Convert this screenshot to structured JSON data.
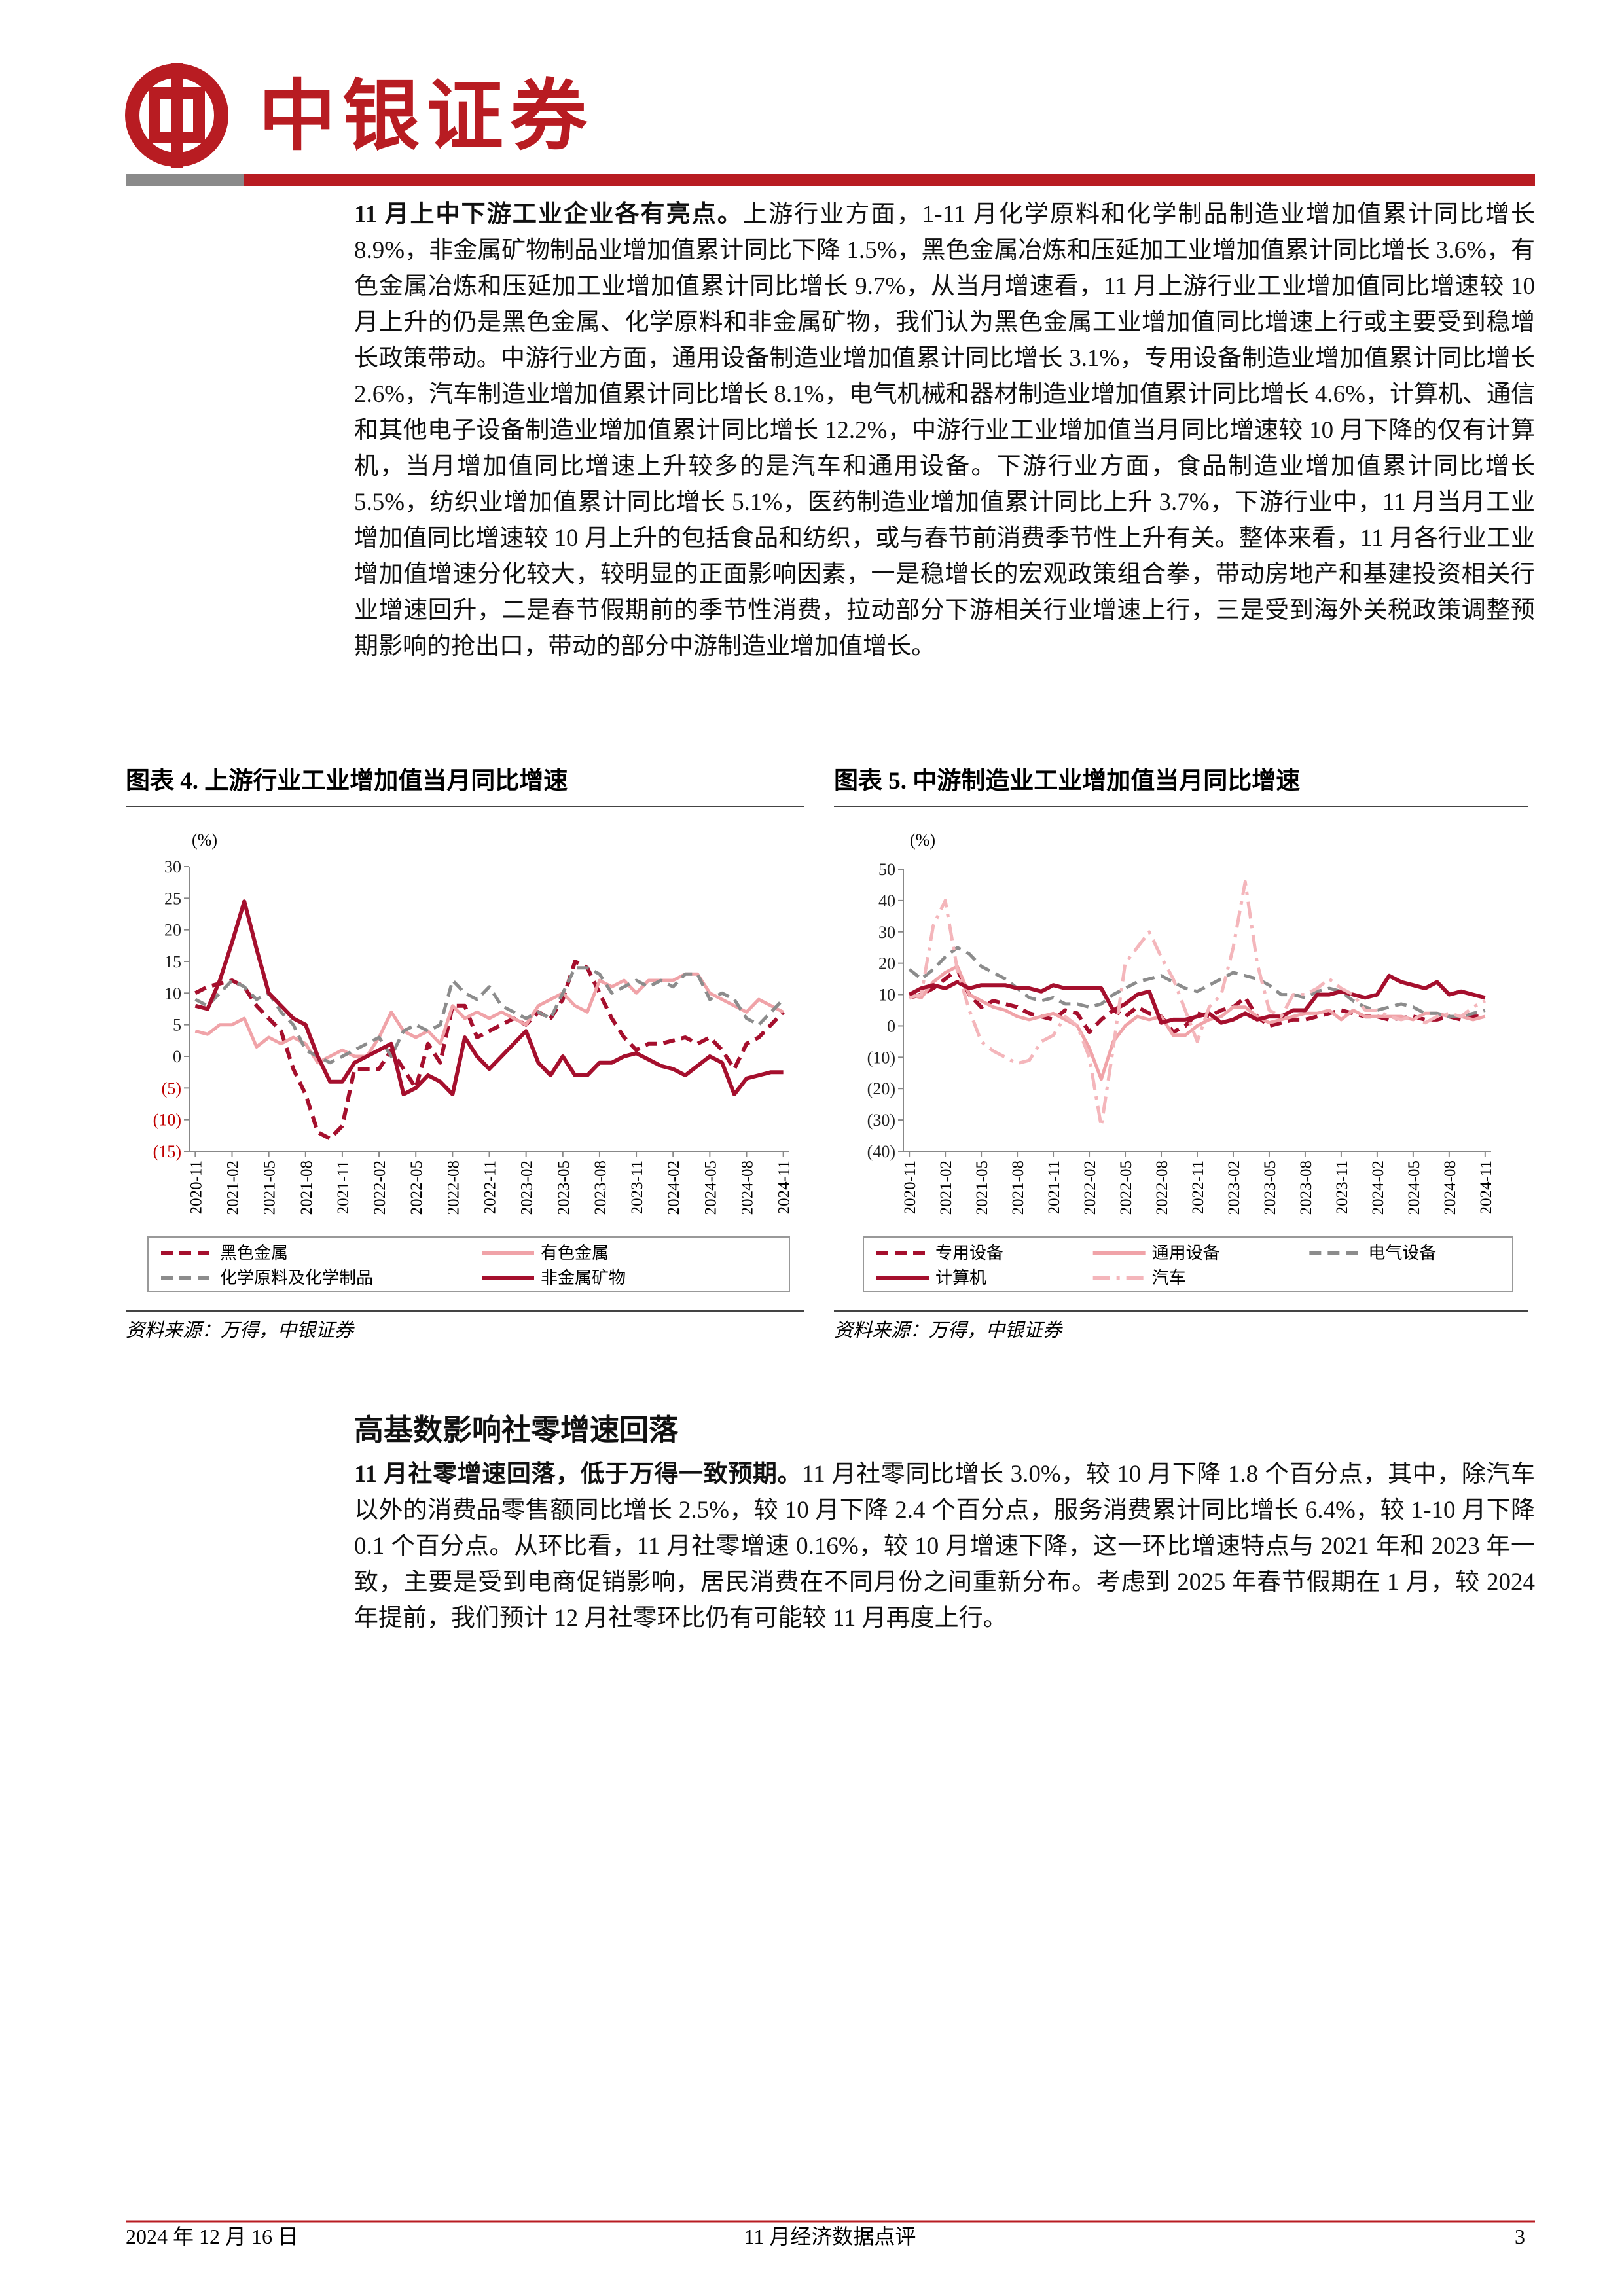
{
  "header": {
    "logo_text": "中银证券"
  },
  "body": {
    "paragraph_1": {
      "lead": "11 月上中下游工业企业各有亮点。",
      "text": "上游行业方面，1-11 月化学原料和化学制品制造业增加值累计同比增长 8.9%，非金属矿物制品业增加值累计同比下降 1.5%，黑色金属冶炼和压延加工业增加值累计同比增长 3.6%，有色金属冶炼和压延加工业增加值累计同比增长 9.7%，从当月增速看，11 月上游行业工业增加值同比增速较 10 月上升的仍是黑色金属、化学原料和非金属矿物，我们认为黑色金属工业增加值同比增速上行或主要受到稳增长政策带动。中游行业方面，通用设备制造业增加值累计同比增长 3.1%，专用设备制造业增加值累计同比增长 2.6%，汽车制造业增加值累计同比增长 8.1%，电气机械和器材制造业增加值累计同比增长 4.6%，计算机、通信和其他电子设备制造业增加值累计同比增长 12.2%，中游行业工业增加值当月同比增速较 10 月下降的仅有计算机，当月增加值同比增速上升较多的是汽车和通用设备。下游行业方面，食品制造业增加值累计同比增长 5.5%，纺织业增加值累计同比增长 5.1%，医药制造业增加值累计同比上升 3.7%，下游行业中，11 月当月工业增加值同比增速较 10 月上升的包括食品和纺织，或与春节前消费季节性上升有关。整体来看，11 月各行业工业增加值增速分化较大，较明显的正面影响因素，一是稳增长的宏观政策组合拳，带动房地产和基建投资相关行业增速回升，二是春节假期前的季节性消费，拉动部分下游相关行业增速上行，三是受到海外关税政策调整预期影响的抢出口，带动的部分中游制造业增加值增长。"
    },
    "heading": "高基数影响社零增速回落",
    "paragraph_2": {
      "lead": "11 月社零增速回落，低于万得一致预期。",
      "text": "11 月社零同比增长 3.0%，较 10 月下降 1.8 个百分点，其中，除汽车以外的消费品零售额同比增长 2.5%，较 10 月下降 2.4 个百分点，服务消费累计同比增长 6.4%，较 1-10 月下降 0.1 个百分点。从环比看，11 月社零增速 0.16%，较 10 月增速下降，这一环比增速特点与 2021 年和 2023 年一致，主要是受到电商促销影响，居民消费在不同月份之间重新分布。考虑到 2025 年春节假期在 1 月，较 2024 年提前，我们预计 12 月社零环比仍有可能较 11 月再度上行。"
    }
  },
  "chart_data": [
    {
      "type": "line",
      "title": "图表 4. 上游行业工业增加值当月同比增速",
      "unit": "(%)",
      "source": "资料来源：万得，中银证券",
      "categories": [
        "2020-11",
        null,
        null,
        "2021-02",
        null,
        null,
        "2021-05",
        null,
        null,
        "2021-08",
        null,
        null,
        "2021-11",
        null,
        null,
        "2022-02",
        null,
        null,
        "2022-05",
        null,
        null,
        "2022-08",
        null,
        null,
        "2022-11",
        null,
        null,
        "2023-02",
        null,
        null,
        "2023-05",
        null,
        null,
        "2023-08",
        null,
        null,
        "2023-11",
        null,
        null,
        "2024-02",
        null,
        null,
        "2024-05",
        null,
        null,
        "2024-08",
        null,
        null,
        "2024-11"
      ],
      "ylim": [
        -15,
        30
      ],
      "yticks": [
        30,
        25,
        20,
        15,
        10,
        5,
        0,
        {
          "value": -5,
          "label": "(5)"
        },
        {
          "value": -10,
          "label": "(10)"
        },
        {
          "value": -15,
          "label": "(15)"
        }
      ],
      "grid": false,
      "legend": "bottom",
      "series": [
        {
          "name": "黑色金属",
          "color": "#a50f2d",
          "dash": "dashed",
          "values": [
            10,
            11,
            11.5,
            12,
            11,
            8,
            6,
            4,
            -2,
            -6,
            -12,
            -13,
            -11,
            -2,
            -2,
            -2,
            1,
            -2,
            -5,
            2,
            -1,
            8,
            8,
            3,
            4,
            5,
            6,
            5,
            7,
            6,
            9,
            15,
            14,
            10,
            6,
            3,
            1,
            2,
            2,
            2.5,
            3,
            2,
            3,
            1,
            -2,
            2,
            3,
            5,
            7
          ]
        },
        {
          "name": "有色金属",
          "color": "#f0a3a8",
          "dash": "solid",
          "values": [
            4,
            3.5,
            5,
            5,
            6,
            1.5,
            3,
            2,
            3,
            2,
            -1,
            0,
            1,
            0,
            0,
            3,
            7,
            4,
            3,
            4,
            2,
            8,
            6,
            7,
            6,
            7,
            6,
            5,
            8,
            9,
            10,
            8,
            7,
            12,
            11,
            12,
            10,
            12,
            12,
            12,
            13,
            13,
            10,
            9,
            8,
            7,
            9,
            8,
            7
          ]
        },
        {
          "name": "化学原料及化学制品",
          "color": "#8c8c8c",
          "dash": "dashed",
          "values": [
            9,
            8,
            10,
            12,
            11,
            9,
            10,
            7,
            5,
            1,
            0,
            -1,
            0,
            1,
            2,
            3,
            0,
            4,
            5,
            4,
            5,
            12,
            10,
            9,
            11,
            8,
            7,
            6,
            7,
            6,
            10,
            14,
            14,
            13,
            10,
            11,
            12,
            11,
            12,
            11,
            13,
            13,
            9,
            10,
            9,
            6,
            5,
            7,
            9
          ]
        },
        {
          "name": "非金属矿物",
          "color": "#a50f2d",
          "dash": "solid",
          "values": [
            8,
            7.5,
            12,
            18,
            24.5,
            17,
            10,
            8,
            6,
            5,
            0,
            -4,
            -4,
            -1,
            0,
            1,
            2,
            -6,
            -5,
            -3,
            -4,
            -6,
            3,
            0,
            -2,
            0,
            2,
            4,
            -1,
            -3,
            0,
            -3,
            -3,
            -1,
            -1,
            0,
            0.5,
            -0.5,
            -1.5,
            -2,
            -3,
            -1.5,
            0,
            -1,
            -6,
            -3.5,
            -3,
            -2.5,
            -2.5
          ]
        }
      ]
    },
    {
      "type": "line",
      "title": "图表 5. 中游制造业工业增加值当月同比增速",
      "unit": "(%)",
      "source": "资料来源：万得，中银证券",
      "categories": [
        "2020-11",
        null,
        null,
        "2021-02",
        null,
        null,
        "2021-05",
        null,
        null,
        "2021-08",
        null,
        null,
        "2021-11",
        null,
        null,
        "2022-02",
        null,
        null,
        "2022-05",
        null,
        null,
        "2022-08",
        null,
        null,
        "2022-11",
        null,
        null,
        "2023-02",
        null,
        null,
        "2023-05",
        null,
        null,
        "2023-08",
        null,
        null,
        "2023-11",
        null,
        null,
        "2024-02",
        null,
        null,
        "2024-05",
        null,
        null,
        "2024-08",
        null,
        null,
        "2024-11"
      ],
      "ylim": [
        -40,
        50
      ],
      "yticks": [
        50,
        40,
        30,
        20,
        10,
        0,
        {
          "value": -10,
          "label": "(10)"
        },
        {
          "value": -20,
          "label": "(20)"
        },
        {
          "value": -30,
          "label": "(30)"
        },
        {
          "value": -40,
          "label": "(40)"
        }
      ],
      "grid": false,
      "legend": "bottom",
      "series": [
        {
          "name": "专用设备",
          "color": "#a50f2d",
          "dash": "dashed",
          "values": [
            9,
            10,
            12,
            15,
            18,
            10,
            6,
            8,
            7,
            6,
            4,
            3,
            2,
            5,
            4,
            -2,
            2,
            5,
            3,
            6,
            4,
            3,
            -2,
            0,
            4,
            3,
            5,
            6,
            9,
            3,
            0,
            1,
            2,
            2,
            3,
            4,
            5,
            4,
            3,
            3,
            2,
            2.5,
            3,
            2,
            2,
            3,
            2,
            3,
            3
          ]
        },
        {
          "name": "通用设备",
          "color": "#f0a3a8",
          "dash": "solid",
          "values": [
            10,
            9,
            14,
            17,
            19,
            10,
            8,
            6,
            5,
            3,
            2,
            3,
            4,
            2,
            0,
            -7,
            -17,
            -5,
            0,
            3,
            2,
            3,
            -3,
            -3,
            0,
            2,
            3,
            6,
            6,
            3,
            1,
            2,
            3,
            4,
            4,
            5,
            2,
            5,
            3,
            3,
            3,
            3,
            2,
            4,
            4,
            3,
            3,
            2,
            3
          ]
        },
        {
          "name": "电气设备",
          "color": "#8c8c8c",
          "dash": "dashed",
          "values": [
            18,
            15,
            18,
            22,
            25,
            23,
            19,
            17,
            15,
            12,
            9,
            8,
            9,
            7,
            7,
            6,
            7,
            10,
            12,
            14,
            15,
            16,
            14,
            12,
            11,
            13,
            15,
            17,
            16,
            15,
            13,
            10,
            10,
            9,
            11,
            12,
            11,
            8,
            6,
            5,
            6,
            7,
            6,
            4,
            4,
            3,
            3,
            4,
            5
          ]
        },
        {
          "name": "计算机",
          "color": "#a50f2d",
          "dash": "solid",
          "values": [
            10,
            12,
            13,
            12,
            14,
            12,
            13,
            13,
            13,
            12,
            12,
            11,
            13,
            12,
            12,
            12,
            12,
            5,
            7,
            10,
            11,
            1,
            2,
            2,
            3,
            4,
            1,
            2,
            4,
            2,
            3,
            3,
            5,
            5,
            10,
            10,
            11,
            10,
            9,
            10,
            16,
            14,
            13,
            12,
            14,
            10,
            11,
            10,
            9
          ]
        },
        {
          "name": "汽车",
          "color": "#f4b6bb",
          "dash": "dashdot",
          "values": [
            9,
            10,
            32,
            40,
            18,
            5,
            -5,
            -8,
            -10,
            -12,
            -11,
            -5,
            -3,
            3,
            0,
            -10,
            -32,
            -7,
            20,
            25,
            30,
            22,
            15,
            5,
            -5,
            6,
            10,
            25,
            46,
            20,
            5,
            3,
            10,
            10,
            12,
            15,
            12,
            10,
            5,
            5,
            3,
            2,
            3,
            1,
            3,
            4,
            3,
            6,
            8
          ]
        }
      ]
    }
  ],
  "footer": {
    "date": "2024 年 12 月 16 日",
    "title": "11 月经济数据点评",
    "page": "3"
  }
}
